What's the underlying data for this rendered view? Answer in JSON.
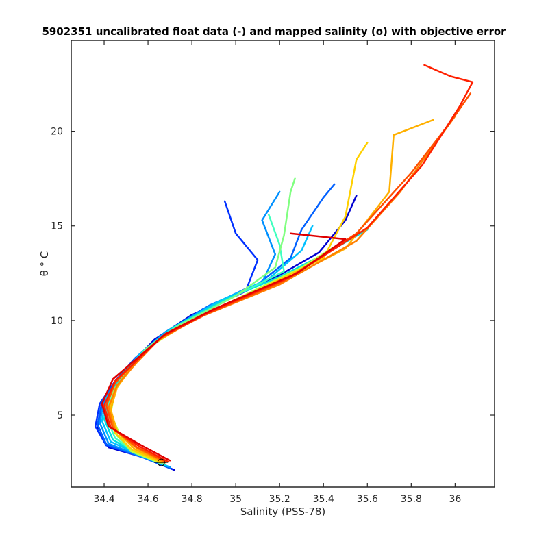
{
  "chart_data": {
    "type": "line",
    "title": "5902351 uncalibrated float data (-) and mapped salinity (o) with objective error",
    "xlabel": "Salinity (PSS-78)",
    "ylabel": "θ ° C",
    "xlim": [
      34.25,
      36.18
    ],
    "ylim": [
      1.2,
      24.8
    ],
    "x_ticks": [
      34.4,
      34.6,
      34.8,
      35,
      35.2,
      35.4,
      35.6,
      35.8,
      36
    ],
    "x_tick_labels": [
      "34.4",
      "34.6",
      "34.8",
      "35",
      "35.2",
      "35.4",
      "35.6",
      "35.8",
      "36"
    ],
    "y_ticks": [
      5,
      10,
      15,
      20
    ],
    "y_tick_labels": [
      "5",
      "10",
      "15",
      "20"
    ],
    "grid": false,
    "colormap": "jet",
    "colors": {
      "axes": "#262626",
      "background": "#ffffff"
    },
    "series": [
      {
        "color": "#0000d0",
        "points": [
          [
            34.72,
            2.1
          ],
          [
            34.6,
            2.7
          ],
          [
            34.42,
            3.3
          ],
          [
            34.37,
            4.2
          ],
          [
            34.39,
            5.5
          ],
          [
            34.45,
            6.6
          ],
          [
            34.53,
            7.8
          ],
          [
            34.63,
            9.0
          ],
          [
            34.8,
            10.3
          ],
          [
            35.0,
            11.3
          ],
          [
            35.2,
            12.4
          ],
          [
            35.38,
            13.6
          ],
          [
            35.5,
            15.3
          ],
          [
            35.55,
            16.6
          ]
        ]
      },
      {
        "color": "#0030ff",
        "points": [
          [
            34.71,
            2.15
          ],
          [
            34.58,
            2.75
          ],
          [
            34.41,
            3.4
          ],
          [
            34.36,
            4.4
          ],
          [
            34.38,
            5.6
          ],
          [
            34.45,
            6.8
          ],
          [
            34.54,
            8.0
          ],
          [
            34.66,
            9.2
          ],
          [
            34.85,
            10.6
          ],
          [
            35.05,
            11.7
          ],
          [
            35.1,
            13.2
          ],
          [
            35.0,
            14.6
          ],
          [
            34.95,
            16.3
          ]
        ]
      },
      {
        "color": "#0060ff",
        "points": [
          [
            34.7,
            2.2
          ],
          [
            34.57,
            2.8
          ],
          [
            34.41,
            3.45
          ],
          [
            34.37,
            4.5
          ],
          [
            34.39,
            5.7
          ],
          [
            34.46,
            6.9
          ],
          [
            34.55,
            8.1
          ],
          [
            34.67,
            9.3
          ],
          [
            34.88,
            10.8
          ],
          [
            35.1,
            11.9
          ],
          [
            35.25,
            13.3
          ],
          [
            35.3,
            14.8
          ],
          [
            35.4,
            16.5
          ],
          [
            35.45,
            17.2
          ]
        ]
      },
      {
        "color": "#0090ff",
        "points": [
          [
            34.7,
            2.25
          ],
          [
            34.56,
            2.85
          ],
          [
            34.42,
            3.5
          ],
          [
            34.38,
            4.6
          ],
          [
            34.4,
            5.8
          ],
          [
            34.47,
            7.0
          ],
          [
            34.56,
            8.2
          ],
          [
            34.68,
            9.4
          ],
          [
            34.9,
            10.9
          ],
          [
            35.12,
            12.0
          ],
          [
            35.18,
            13.5
          ],
          [
            35.12,
            15.3
          ],
          [
            35.2,
            16.8
          ]
        ]
      },
      {
        "color": "#00c0ff",
        "points": [
          [
            34.69,
            2.3
          ],
          [
            34.56,
            2.9
          ],
          [
            34.43,
            3.6
          ],
          [
            34.39,
            4.7
          ],
          [
            34.41,
            5.9
          ],
          [
            34.48,
            7.1
          ],
          [
            34.57,
            8.3
          ],
          [
            34.7,
            9.5
          ],
          [
            34.92,
            11.0
          ],
          [
            35.15,
            12.2
          ],
          [
            35.3,
            13.7
          ],
          [
            35.35,
            15.0
          ]
        ]
      },
      {
        "color": "#00e0e0",
        "points": [
          [
            34.68,
            2.35
          ],
          [
            34.55,
            2.95
          ],
          [
            34.44,
            3.7
          ],
          [
            34.4,
            4.8
          ],
          [
            34.42,
            6.0
          ],
          [
            34.49,
            7.2
          ],
          [
            34.58,
            8.4
          ],
          [
            34.71,
            9.6
          ],
          [
            34.95,
            11.1
          ],
          [
            35.2,
            12.3
          ],
          [
            35.42,
            13.6
          ],
          [
            35.6,
            14.8
          ]
        ]
      },
      {
        "color": "#40ffbf",
        "points": [
          [
            34.67,
            2.4
          ],
          [
            34.54,
            3.0
          ],
          [
            34.45,
            3.8
          ],
          [
            34.41,
            4.9
          ],
          [
            34.43,
            6.1
          ],
          [
            34.5,
            7.3
          ],
          [
            34.59,
            8.5
          ],
          [
            34.73,
            9.7
          ],
          [
            34.98,
            11.2
          ],
          [
            35.22,
            12.6
          ],
          [
            35.2,
            14.0
          ],
          [
            35.15,
            15.6
          ]
        ]
      },
      {
        "color": "#80ff80",
        "points": [
          [
            34.66,
            2.45
          ],
          [
            34.53,
            3.05
          ],
          [
            34.46,
            3.9
          ],
          [
            34.42,
            5.0
          ],
          [
            34.44,
            6.2
          ],
          [
            34.51,
            7.4
          ],
          [
            34.6,
            8.6
          ],
          [
            34.75,
            9.8
          ],
          [
            35.0,
            11.3
          ],
          [
            35.18,
            12.8
          ],
          [
            35.22,
            14.5
          ],
          [
            35.25,
            16.8
          ],
          [
            35.27,
            17.5
          ]
        ]
      },
      {
        "color": "#bfff40",
        "points": [
          [
            34.65,
            2.5
          ],
          [
            34.52,
            3.1
          ],
          [
            34.47,
            4.0
          ],
          [
            34.43,
            5.1
          ],
          [
            34.45,
            6.3
          ],
          [
            34.52,
            7.5
          ],
          [
            34.62,
            8.7
          ],
          [
            34.78,
            9.9
          ],
          [
            35.05,
            11.4
          ],
          [
            35.3,
            12.8
          ],
          [
            35.45,
            13.9
          ]
        ]
      },
      {
        "color": "#ffd000",
        "points": [
          [
            34.66,
            2.5
          ],
          [
            34.53,
            3.15
          ],
          [
            34.45,
            4.05
          ],
          [
            34.42,
            5.2
          ],
          [
            34.45,
            6.4
          ],
          [
            34.53,
            7.6
          ],
          [
            34.63,
            8.8
          ],
          [
            34.8,
            10.0
          ],
          [
            35.1,
            11.6
          ],
          [
            35.4,
            13.3
          ],
          [
            35.5,
            15.5
          ],
          [
            35.55,
            18.5
          ],
          [
            35.6,
            19.4
          ]
        ]
      },
      {
        "color": "#ffb000",
        "points": [
          [
            34.67,
            2.5
          ],
          [
            34.54,
            3.2
          ],
          [
            34.46,
            4.1
          ],
          [
            34.43,
            5.3
          ],
          [
            34.46,
            6.5
          ],
          [
            34.54,
            7.7
          ],
          [
            34.64,
            8.9
          ],
          [
            34.82,
            10.1
          ],
          [
            35.15,
            11.7
          ],
          [
            35.5,
            13.8
          ],
          [
            35.7,
            16.8
          ],
          [
            35.72,
            19.8
          ],
          [
            35.9,
            20.6
          ]
        ]
      },
      {
        "color": "#ff8000",
        "points": [
          [
            34.68,
            2.5
          ],
          [
            34.55,
            3.25
          ],
          [
            34.45,
            4.2
          ],
          [
            34.42,
            5.4
          ],
          [
            34.46,
            6.6
          ],
          [
            34.55,
            7.8
          ],
          [
            34.65,
            9.0
          ],
          [
            34.84,
            10.2
          ],
          [
            35.2,
            11.9
          ],
          [
            35.55,
            14.2
          ],
          [
            35.75,
            16.8
          ],
          [
            35.9,
            19.2
          ],
          [
            36.0,
            20.8
          ]
        ]
      },
      {
        "color": "#ff5000",
        "points": [
          [
            34.68,
            2.55
          ],
          [
            34.55,
            3.3
          ],
          [
            34.44,
            4.3
          ],
          [
            34.41,
            5.5
          ],
          [
            34.45,
            6.7
          ],
          [
            34.55,
            7.9
          ],
          [
            34.66,
            9.1
          ],
          [
            34.86,
            10.3
          ],
          [
            35.22,
            12.1
          ],
          [
            35.55,
            14.6
          ],
          [
            35.8,
            17.8
          ],
          [
            35.98,
            20.5
          ],
          [
            36.07,
            22.0
          ]
        ]
      },
      {
        "color": "#ff2000",
        "points": [
          [
            34.69,
            2.55
          ],
          [
            34.56,
            3.35
          ],
          [
            34.43,
            4.35
          ],
          [
            34.4,
            5.5
          ],
          [
            34.45,
            6.8
          ],
          [
            34.56,
            8.0
          ],
          [
            34.67,
            9.2
          ],
          [
            34.87,
            10.4
          ],
          [
            35.25,
            12.3
          ],
          [
            35.6,
            14.9
          ],
          [
            35.85,
            18.2
          ],
          [
            36.02,
            21.3
          ],
          [
            36.08,
            22.6
          ],
          [
            35.98,
            22.9
          ],
          [
            35.86,
            23.5
          ]
        ]
      },
      {
        "color": "#e00000",
        "points": [
          [
            34.7,
            2.6
          ],
          [
            34.57,
            3.4
          ],
          [
            34.42,
            4.4
          ],
          [
            34.39,
            5.6
          ],
          [
            34.44,
            6.9
          ],
          [
            34.56,
            8.1
          ],
          [
            34.68,
            9.3
          ],
          [
            34.9,
            10.6
          ],
          [
            35.28,
            12.5
          ],
          [
            35.5,
            14.3
          ],
          [
            35.25,
            14.6
          ]
        ]
      }
    ],
    "mapped_points": [
      {
        "x": 34.66,
        "y": 2.5,
        "label": "o"
      }
    ]
  }
}
